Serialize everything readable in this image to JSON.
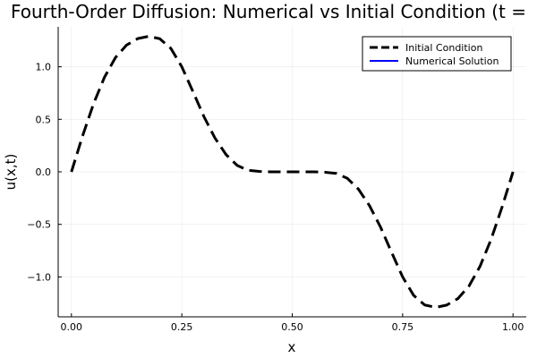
{
  "chart_data": {
    "type": "line",
    "title": "Fourth-Order Diffusion: Numerical vs Initial Condition (t = ",
    "xlabel": "x",
    "ylabel": "u(x,t)",
    "xlim": [
      -0.03,
      1.03
    ],
    "ylim": [
      -1.38,
      1.38
    ],
    "xticks": [
      0.0,
      0.25,
      0.5,
      0.75,
      1.0
    ],
    "xtick_labels": [
      "0.00",
      "0.25",
      "0.50",
      "0.75",
      "1.00"
    ],
    "yticks": [
      -1.0,
      -0.5,
      0.0,
      0.5,
      1.0
    ],
    "ytick_labels": [
      "−1.0",
      "−0.5",
      "0.0",
      "0.5",
      "1.0"
    ],
    "grid": true,
    "legend_position": "top-right",
    "series": [
      {
        "name": "Initial Condition",
        "color": "#000000",
        "style": "dashed",
        "x": [
          0.0,
          0.025,
          0.05,
          0.075,
          0.1,
          0.125,
          0.15,
          0.175,
          0.2,
          0.225,
          0.25,
          0.275,
          0.3,
          0.325,
          0.35,
          0.375,
          0.4,
          0.425,
          0.45,
          0.475,
          0.5,
          0.525,
          0.55,
          0.575,
          0.6,
          0.625,
          0.65,
          0.675,
          0.7,
          0.725,
          0.75,
          0.775,
          0.8,
          0.825,
          0.85,
          0.875,
          0.9,
          0.925,
          0.95,
          0.975,
          1.0
        ],
        "y": [
          0.0,
          0.338,
          0.647,
          0.902,
          1.089,
          1.207,
          1.268,
          1.29,
          1.267,
          1.176,
          1.0,
          0.766,
          0.526,
          0.322,
          0.165,
          0.062,
          0.015,
          0.004,
          0.0,
          0.0,
          0.0,
          0.0,
          0.0,
          -0.004,
          -0.015,
          -0.062,
          -0.165,
          -0.322,
          -0.526,
          -0.766,
          -1.0,
          -1.176,
          -1.267,
          -1.29,
          -1.268,
          -1.207,
          -1.089,
          -0.902,
          -0.647,
          -0.338,
          0.0
        ]
      },
      {
        "name": "Numerical Solution",
        "color": "#0000ff",
        "style": "solid",
        "x": [],
        "y": []
      }
    ]
  }
}
